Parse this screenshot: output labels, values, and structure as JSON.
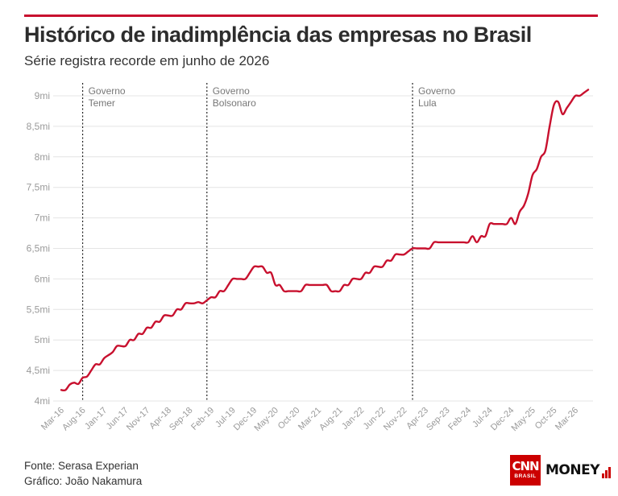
{
  "header": {
    "title": "Histórico de inadimplência das empresas no Brasil",
    "subtitle": "Série registra recorde em junho de 2026"
  },
  "footer": {
    "source": "Fonte: Serasa Experian",
    "credit": "Gráfico: João Nakamura"
  },
  "logo": {
    "cnn": "CNN",
    "brasil": "BRASIL",
    "money": "MONEY"
  },
  "colors": {
    "accent": "#c8102e",
    "line": "#c8102e",
    "grid": "#e4e4e4",
    "tick_text": "#9a9a9a",
    "annotation_text": "#777777"
  },
  "chart_data": {
    "type": "line",
    "title": "Histórico de inadimplência das empresas no Brasil",
    "subtitle": "Série registra recorde em junho de 2026",
    "xlabel": "",
    "ylabel": "",
    "x_range": [
      "2016-03",
      "2026-06"
    ],
    "ylim": [
      4,
      9
    ],
    "y_ticks": [
      {
        "value": 4,
        "label": "4mi"
      },
      {
        "value": 4.5,
        "label": "4,5mi"
      },
      {
        "value": 5,
        "label": "5mi"
      },
      {
        "value": 5.5,
        "label": "5,5mi"
      },
      {
        "value": 6,
        "label": "6mi"
      },
      {
        "value": 6.5,
        "label": "6,5mi"
      },
      {
        "value": 7,
        "label": "7mi"
      },
      {
        "value": 7.5,
        "label": "7,5mi"
      },
      {
        "value": 8,
        "label": "8mi"
      },
      {
        "value": 8.5,
        "label": "8,5mi"
      },
      {
        "value": 9,
        "label": "9mi"
      }
    ],
    "x_ticks": [
      {
        "date": "2016-03",
        "label": "Mar-16"
      },
      {
        "date": "2016-08",
        "label": "Aug-16"
      },
      {
        "date": "2017-01",
        "label": "Jan-17"
      },
      {
        "date": "2017-06",
        "label": "Jun-17"
      },
      {
        "date": "2017-11",
        "label": "Nov-17"
      },
      {
        "date": "2018-04",
        "label": "Apr-18"
      },
      {
        "date": "2018-09",
        "label": "Sep-18"
      },
      {
        "date": "2019-02",
        "label": "Feb-19"
      },
      {
        "date": "2019-07",
        "label": "Jul-19"
      },
      {
        "date": "2019-12",
        "label": "Dec-19"
      },
      {
        "date": "2020-05",
        "label": "May-20"
      },
      {
        "date": "2020-10",
        "label": "Oct-20"
      },
      {
        "date": "2021-03",
        "label": "Mar-21"
      },
      {
        "date": "2021-08",
        "label": "Aug-21"
      },
      {
        "date": "2022-01",
        "label": "Jan-22"
      },
      {
        "date": "2022-06",
        "label": "Jun-22"
      },
      {
        "date": "2022-11",
        "label": "Nov-22"
      },
      {
        "date": "2023-04",
        "label": "Apr-23"
      },
      {
        "date": "2023-09",
        "label": "Sep-23"
      },
      {
        "date": "2024-02",
        "label": "Feb-24"
      },
      {
        "date": "2024-07",
        "label": "Jul-24"
      },
      {
        "date": "2024-12",
        "label": "Dec-24"
      },
      {
        "date": "2025-05",
        "label": "May-25"
      },
      {
        "date": "2025-10",
        "label": "Oct-25"
      },
      {
        "date": "2026-03",
        "label": "Mar-26"
      }
    ],
    "grid": true,
    "annotations": [
      {
        "date": "2016-08",
        "lines": [
          "Governo",
          "Temer"
        ]
      },
      {
        "date": "2019-01",
        "lines": [
          "Governo",
          "Bolsonaro"
        ]
      },
      {
        "date": "2023-01",
        "lines": [
          "Governo",
          "Lula"
        ]
      }
    ],
    "series": [
      {
        "name": "",
        "points": [
          [
            "2016-03",
            4.18
          ],
          [
            "2016-04",
            4.18
          ],
          [
            "2016-05",
            4.27
          ],
          [
            "2016-06",
            4.3
          ],
          [
            "2016-07",
            4.28
          ],
          [
            "2016-08",
            4.38
          ],
          [
            "2016-09",
            4.4
          ],
          [
            "2016-10",
            4.5
          ],
          [
            "2016-11",
            4.6
          ],
          [
            "2016-12",
            4.6
          ],
          [
            "2017-01",
            4.7
          ],
          [
            "2017-02",
            4.75
          ],
          [
            "2017-03",
            4.8
          ],
          [
            "2017-04",
            4.9
          ],
          [
            "2017-05",
            4.9
          ],
          [
            "2017-06",
            4.9
          ],
          [
            "2017-07",
            5.0
          ],
          [
            "2017-08",
            5.0
          ],
          [
            "2017-09",
            5.1
          ],
          [
            "2017-10",
            5.1
          ],
          [
            "2017-11",
            5.2
          ],
          [
            "2017-12",
            5.2
          ],
          [
            "2018-01",
            5.3
          ],
          [
            "2018-02",
            5.3
          ],
          [
            "2018-03",
            5.4
          ],
          [
            "2018-04",
            5.4
          ],
          [
            "2018-05",
            5.4
          ],
          [
            "2018-06",
            5.5
          ],
          [
            "2018-07",
            5.5
          ],
          [
            "2018-08",
            5.6
          ],
          [
            "2018-09",
            5.6
          ],
          [
            "2018-10",
            5.6
          ],
          [
            "2018-11",
            5.62
          ],
          [
            "2018-12",
            5.6
          ],
          [
            "2019-01",
            5.65
          ],
          [
            "2019-02",
            5.7
          ],
          [
            "2019-03",
            5.7
          ],
          [
            "2019-04",
            5.8
          ],
          [
            "2019-05",
            5.8
          ],
          [
            "2019-06",
            5.9
          ],
          [
            "2019-07",
            6.0
          ],
          [
            "2019-08",
            6.0
          ],
          [
            "2019-09",
            6.0
          ],
          [
            "2019-10",
            6.0
          ],
          [
            "2019-11",
            6.1
          ],
          [
            "2019-12",
            6.2
          ],
          [
            "2020-01",
            6.2
          ],
          [
            "2020-02",
            6.2
          ],
          [
            "2020-03",
            6.1
          ],
          [
            "2020-04",
            6.1
          ],
          [
            "2020-05",
            5.9
          ],
          [
            "2020-06",
            5.9
          ],
          [
            "2020-07",
            5.8
          ],
          [
            "2020-08",
            5.8
          ],
          [
            "2020-09",
            5.8
          ],
          [
            "2020-10",
            5.8
          ],
          [
            "2020-11",
            5.8
          ],
          [
            "2020-12",
            5.9
          ],
          [
            "2021-01",
            5.9
          ],
          [
            "2021-02",
            5.9
          ],
          [
            "2021-03",
            5.9
          ],
          [
            "2021-04",
            5.9
          ],
          [
            "2021-05",
            5.9
          ],
          [
            "2021-06",
            5.8
          ],
          [
            "2021-07",
            5.8
          ],
          [
            "2021-08",
            5.8
          ],
          [
            "2021-09",
            5.9
          ],
          [
            "2021-10",
            5.9
          ],
          [
            "2021-11",
            6.0
          ],
          [
            "2021-12",
            6.0
          ],
          [
            "2022-01",
            6.0
          ],
          [
            "2022-02",
            6.1
          ],
          [
            "2022-03",
            6.1
          ],
          [
            "2022-04",
            6.2
          ],
          [
            "2022-05",
            6.2
          ],
          [
            "2022-06",
            6.2
          ],
          [
            "2022-07",
            6.3
          ],
          [
            "2022-08",
            6.3
          ],
          [
            "2022-09",
            6.4
          ],
          [
            "2022-10",
            6.4
          ],
          [
            "2022-11",
            6.4
          ],
          [
            "2022-12",
            6.45
          ],
          [
            "2023-01",
            6.5
          ],
          [
            "2023-02",
            6.5
          ],
          [
            "2023-03",
            6.5
          ],
          [
            "2023-04",
            6.5
          ],
          [
            "2023-05",
            6.5
          ],
          [
            "2023-06",
            6.6
          ],
          [
            "2023-07",
            6.6
          ],
          [
            "2023-08",
            6.6
          ],
          [
            "2023-09",
            6.6
          ],
          [
            "2023-10",
            6.6
          ],
          [
            "2023-11",
            6.6
          ],
          [
            "2023-12",
            6.6
          ],
          [
            "2024-01",
            6.6
          ],
          [
            "2024-02",
            6.6
          ],
          [
            "2024-03",
            6.7
          ],
          [
            "2024-04",
            6.6
          ],
          [
            "2024-05",
            6.7
          ],
          [
            "2024-06",
            6.7
          ],
          [
            "2024-07",
            6.9
          ],
          [
            "2024-08",
            6.9
          ],
          [
            "2024-09",
            6.9
          ],
          [
            "2024-10",
            6.9
          ],
          [
            "2024-11",
            6.9
          ],
          [
            "2024-12",
            7.0
          ],
          [
            "2025-01",
            6.9
          ],
          [
            "2025-02",
            7.1
          ],
          [
            "2025-03",
            7.2
          ],
          [
            "2025-04",
            7.4
          ],
          [
            "2025-05",
            7.7
          ],
          [
            "2025-06",
            7.8
          ],
          [
            "2025-07",
            8.0
          ],
          [
            "2025-08",
            8.1
          ],
          [
            "2025-09",
            8.5
          ],
          [
            "2025-10",
            8.85
          ],
          [
            "2025-11",
            8.9
          ],
          [
            "2025-12",
            8.7
          ],
          [
            "2026-01",
            8.8
          ],
          [
            "2026-02",
            8.9
          ],
          [
            "2026-03",
            9.0
          ],
          [
            "2026-04",
            9.0
          ],
          [
            "2026-05",
            9.05
          ],
          [
            "2026-06",
            9.1
          ]
        ]
      }
    ]
  }
}
